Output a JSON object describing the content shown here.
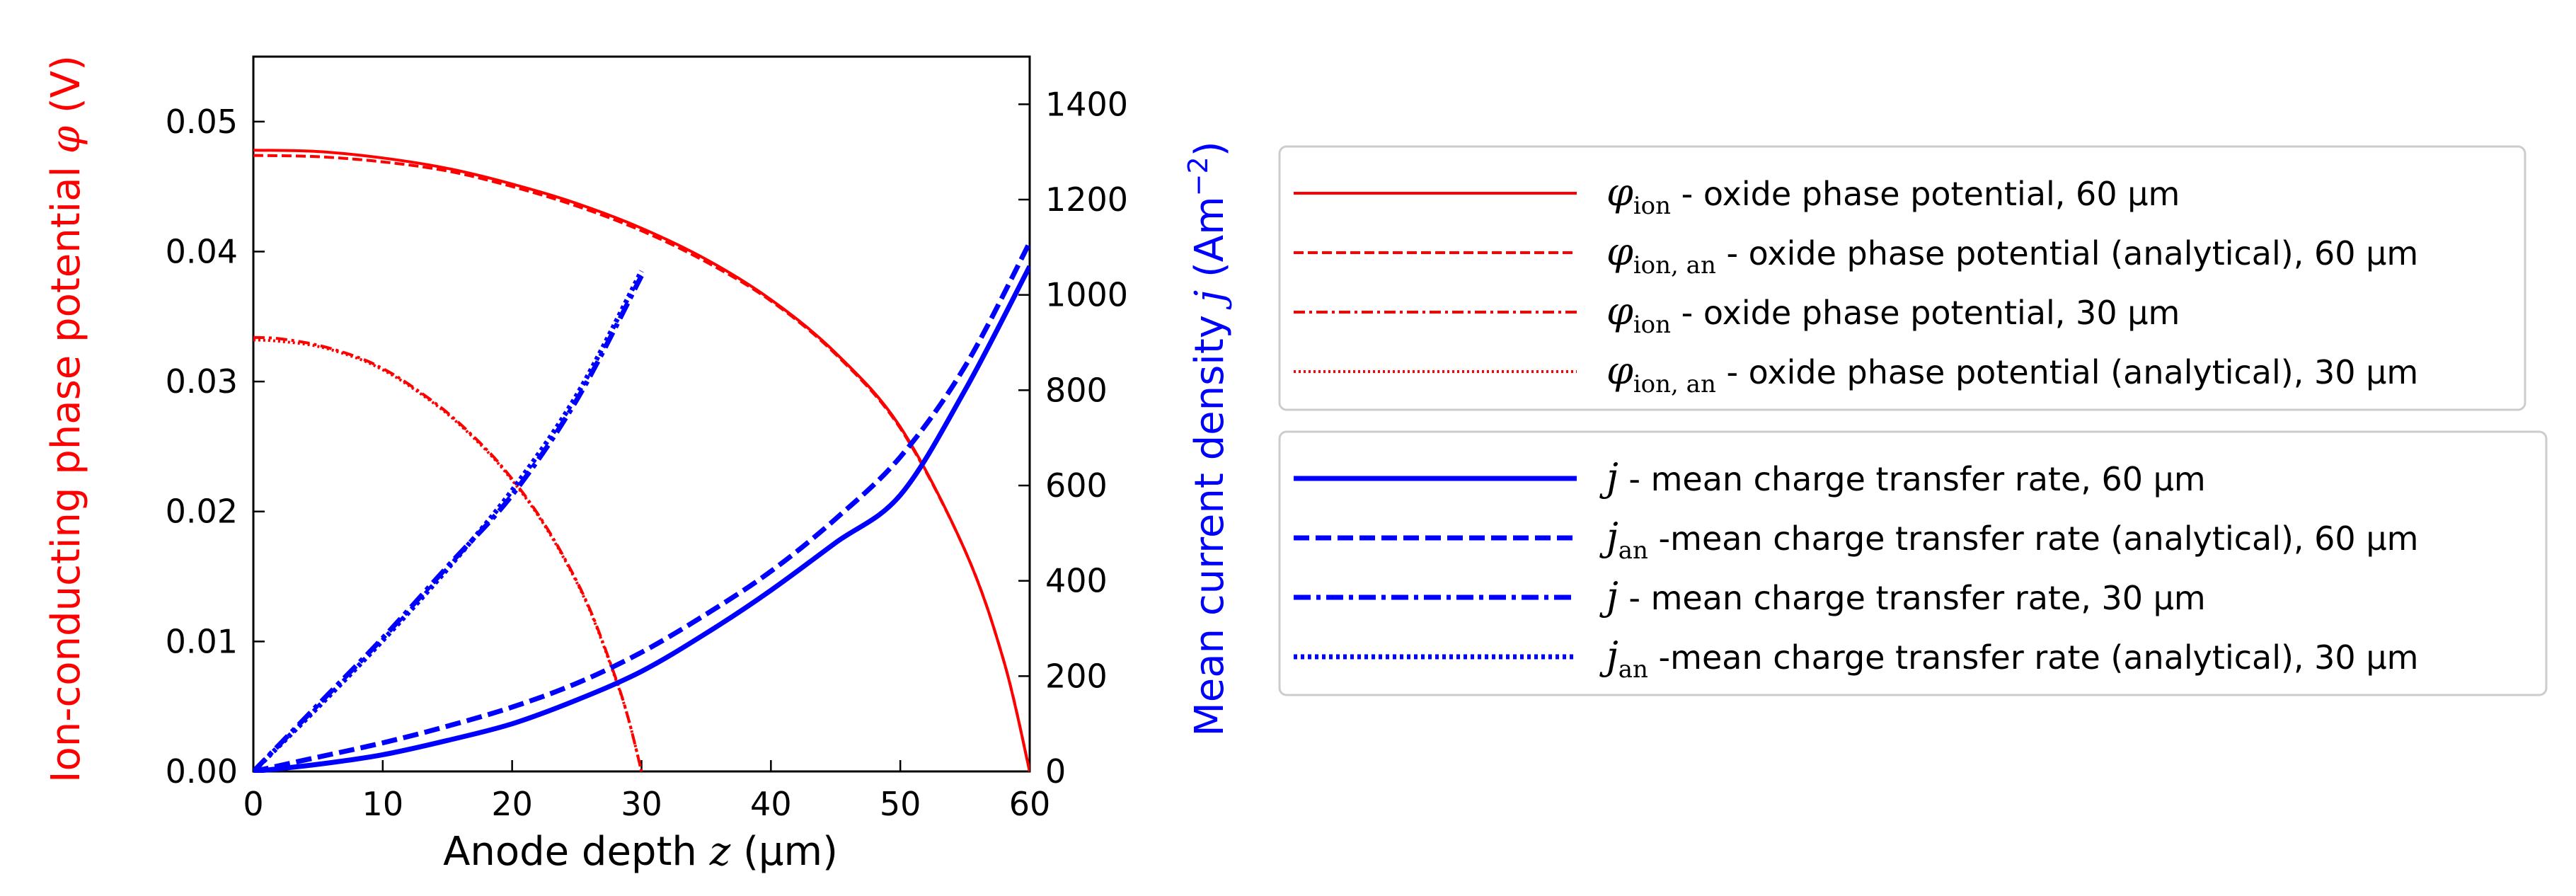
{
  "chart_data": {
    "type": "line",
    "title": "",
    "xlabel": {
      "text": "Anode depth",
      "var": "z",
      "unit": "(μm)"
    },
    "ylabel_left": {
      "text": "Ion-conducting phase potential",
      "var": "φ",
      "unit": "(V)",
      "color": "#ff0000"
    },
    "ylabel_right": {
      "text": "Mean current density",
      "var": "j",
      "unit_base": "(Am",
      "unit_exp": "−2",
      "unit_end": ")",
      "color": "#0000ff"
    },
    "xlim": [
      0,
      60
    ],
    "ylim_left": [
      0,
      0.055
    ],
    "ylim_right": [
      0,
      1500
    ],
    "xticks": [
      0,
      10,
      20,
      30,
      40,
      50,
      60
    ],
    "xtick_labels": [
      "0",
      "10",
      "20",
      "30",
      "40",
      "50",
      "60"
    ],
    "yticks_left": [
      0,
      0.01,
      0.02,
      0.03,
      0.04,
      0.05
    ],
    "ytick_labels_left": [
      "0.00",
      "0.01",
      "0.02",
      "0.03",
      "0.04",
      "0.05"
    ],
    "yticks_right": [
      0,
      200,
      400,
      600,
      800,
      1000,
      1200,
      1400
    ],
    "ytick_labels_right": [
      "0",
      "200",
      "400",
      "600",
      "800",
      "1000",
      "1200",
      "1400"
    ],
    "grid": false,
    "series": [
      {
        "name": "phi_ion_60",
        "axis": "left",
        "color": "#ff0000",
        "style": "solid",
        "width": 2,
        "x": [
          0,
          5,
          10,
          15,
          20,
          25,
          30,
          35,
          40,
          45,
          50,
          55,
          58,
          60
        ],
        "y": [
          0.0478,
          0.0477,
          0.0472,
          0.0464,
          0.0452,
          0.0437,
          0.0418,
          0.0394,
          0.0363,
          0.0322,
          0.0265,
          0.017,
          0.0085,
          0.0
        ]
      },
      {
        "name": "phi_ion_an_60",
        "axis": "left",
        "color": "#ff0000",
        "style": "dashed",
        "width": 2,
        "x": [
          0,
          5,
          10,
          15,
          20,
          25,
          30,
          35,
          40,
          45,
          50,
          55,
          58,
          60
        ],
        "y": [
          0.0474,
          0.0473,
          0.0469,
          0.0462,
          0.045,
          0.0435,
          0.0416,
          0.0392,
          0.0362,
          0.0321,
          0.0264,
          0.017,
          0.0085,
          0.0
        ]
      },
      {
        "name": "phi_ion_30",
        "axis": "left",
        "color": "#ff0000",
        "style": "dashdot",
        "width": 2,
        "x": [
          0,
          2,
          5,
          8,
          10,
          12,
          15,
          18,
          20,
          22,
          24,
          26,
          28,
          29,
          30
        ],
        "y": [
          0.0334,
          0.0333,
          0.0328,
          0.0319,
          0.031,
          0.0298,
          0.0276,
          0.0248,
          0.0225,
          0.0198,
          0.0165,
          0.0125,
          0.0072,
          0.004,
          0.0
        ]
      },
      {
        "name": "phi_ion_an_30",
        "axis": "left",
        "color": "#ff0000",
        "style": "dotted",
        "width": 2,
        "x": [
          0,
          2,
          5,
          8,
          10,
          12,
          15,
          18,
          20,
          22,
          24,
          26,
          28,
          29,
          30
        ],
        "y": [
          0.0332,
          0.0331,
          0.0327,
          0.0318,
          0.0309,
          0.0297,
          0.0275,
          0.0247,
          0.0224,
          0.0197,
          0.0164,
          0.0124,
          0.0071,
          0.004,
          0.0
        ]
      },
      {
        "name": "j_60",
        "axis": "right",
        "color": "#0000ff",
        "style": "solid",
        "width": 3,
        "x": [
          0,
          5,
          10,
          15,
          20,
          25,
          30,
          35,
          40,
          45,
          50,
          55,
          60
        ],
        "y": [
          0,
          15,
          35,
          65,
          100,
          150,
          210,
          290,
          380,
          480,
          580,
          800,
          1060
        ]
      },
      {
        "name": "j_an_60",
        "axis": "right",
        "color": "#0000ff",
        "style": "dashed",
        "width": 3,
        "x": [
          0,
          5,
          10,
          15,
          20,
          25,
          30,
          35,
          40,
          45,
          50,
          55,
          60
        ],
        "y": [
          0,
          30,
          60,
          95,
          135,
          185,
          250,
          330,
          420,
          530,
          660,
          850,
          1110
        ]
      },
      {
        "name": "j_30",
        "axis": "right",
        "color": "#0000ff",
        "style": "dashdot",
        "width": 3,
        "x": [
          0,
          5,
          10,
          15,
          20,
          25,
          30
        ],
        "y": [
          0,
          140,
          280,
          430,
          580,
          780,
          1040
        ]
      },
      {
        "name": "j_an_30",
        "axis": "right",
        "color": "#0000ff",
        "style": "dotted",
        "width": 3,
        "x": [
          0,
          5,
          10,
          15,
          20,
          25,
          30
        ],
        "y": [
          0,
          135,
          275,
          425,
          590,
          790,
          1050
        ]
      }
    ],
    "legend_red": [
      {
        "series": "phi_ion_60",
        "sym": "φ",
        "sub": "ion",
        "text": " - oxide phase potential, 60 μm"
      },
      {
        "series": "phi_ion_an_60",
        "sym": "φ",
        "sub": "ion, an",
        "text": " - oxide phase potential (analytical), 60 μm"
      },
      {
        "series": "phi_ion_30",
        "sym": "φ",
        "sub": "ion",
        "text": " - oxide phase potential, 30 μm"
      },
      {
        "series": "phi_ion_an_30",
        "sym": "φ",
        "sub": "ion, an",
        "text": " - oxide phase potential (analytical), 30 μm"
      }
    ],
    "legend_blue": [
      {
        "series": "j_60",
        "sym": "j",
        "sub": "",
        "text": " - mean charge transfer rate, 60 μm"
      },
      {
        "series": "j_an_60",
        "sym": "j",
        "sub": "an",
        "text": " -mean charge transfer rate (analytical), 60 μm"
      },
      {
        "series": "j_30",
        "sym": "j",
        "sub": "",
        "text": " - mean charge transfer rate, 30 μm"
      },
      {
        "series": "j_an_30",
        "sym": "j",
        "sub": "an",
        "text": " -mean charge transfer rate (analytical), 30 μm"
      }
    ],
    "legend_placement": "right of plot, two stacked boxes"
  }
}
